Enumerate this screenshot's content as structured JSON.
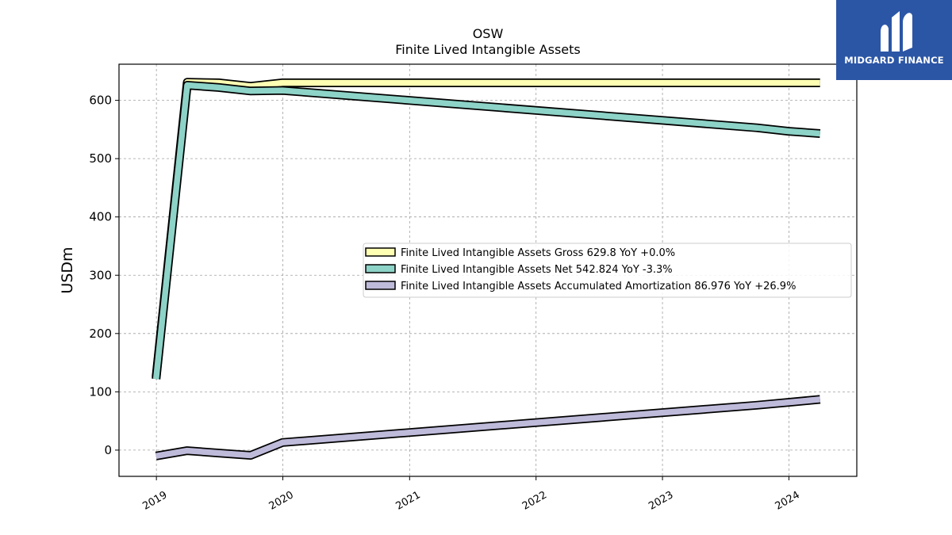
{
  "brand": {
    "name": "MIDGARD FINANCE",
    "bg_color": "#2b56a6"
  },
  "chart_data": {
    "type": "line",
    "title": "OSW",
    "subtitle": "Finite Lived Intangible Assets",
    "ylabel": "USDm",
    "xlabel": "",
    "xlim": [
      "2018-09-15",
      "2024-07-15"
    ],
    "ylim": [
      -45,
      662
    ],
    "yticks": [
      0,
      100,
      200,
      300,
      400,
      500,
      600
    ],
    "xticks": [
      "2019",
      "2020",
      "2021",
      "2022",
      "2023",
      "2024"
    ],
    "grid": true,
    "legend_position": "center-right",
    "series": [
      {
        "name": "Finite Lived Intangible Assets Gross  629.8 YoY +0.0%",
        "color": "#ffffb3",
        "points": [
          [
            "2018-12-31",
            125
          ],
          [
            "2019-03-31",
            631
          ],
          [
            "2019-06-30",
            630
          ],
          [
            "2019-09-30",
            624
          ],
          [
            "2019-12-31",
            630
          ],
          [
            "2023-09-30",
            630
          ],
          [
            "2023-12-31",
            630
          ],
          [
            "2024-03-31",
            630
          ]
        ]
      },
      {
        "name": "Finite Lived Intangible Assets Net  542.824 YoY -3.3%",
        "color": "#8dd3c7",
        "points": [
          [
            "2018-12-31",
            122
          ],
          [
            "2019-03-31",
            626
          ],
          [
            "2019-06-30",
            622
          ],
          [
            "2019-09-30",
            616
          ],
          [
            "2019-12-31",
            617
          ],
          [
            "2023-09-30",
            553
          ],
          [
            "2023-12-31",
            547
          ],
          [
            "2024-03-31",
            543
          ]
        ]
      },
      {
        "name": "Finite Lived Intangible Assets Accumulated Amortization  86.976 YoY +26.9%",
        "color": "#bebada",
        "points": [
          [
            "2018-12-31",
            -10
          ],
          [
            "2019-03-31",
            -1
          ],
          [
            "2019-06-30",
            -5
          ],
          [
            "2019-09-30",
            -9
          ],
          [
            "2019-12-31",
            13
          ],
          [
            "2023-09-30",
            77
          ],
          [
            "2023-12-31",
            82
          ],
          [
            "2024-03-31",
            87
          ]
        ]
      }
    ]
  }
}
